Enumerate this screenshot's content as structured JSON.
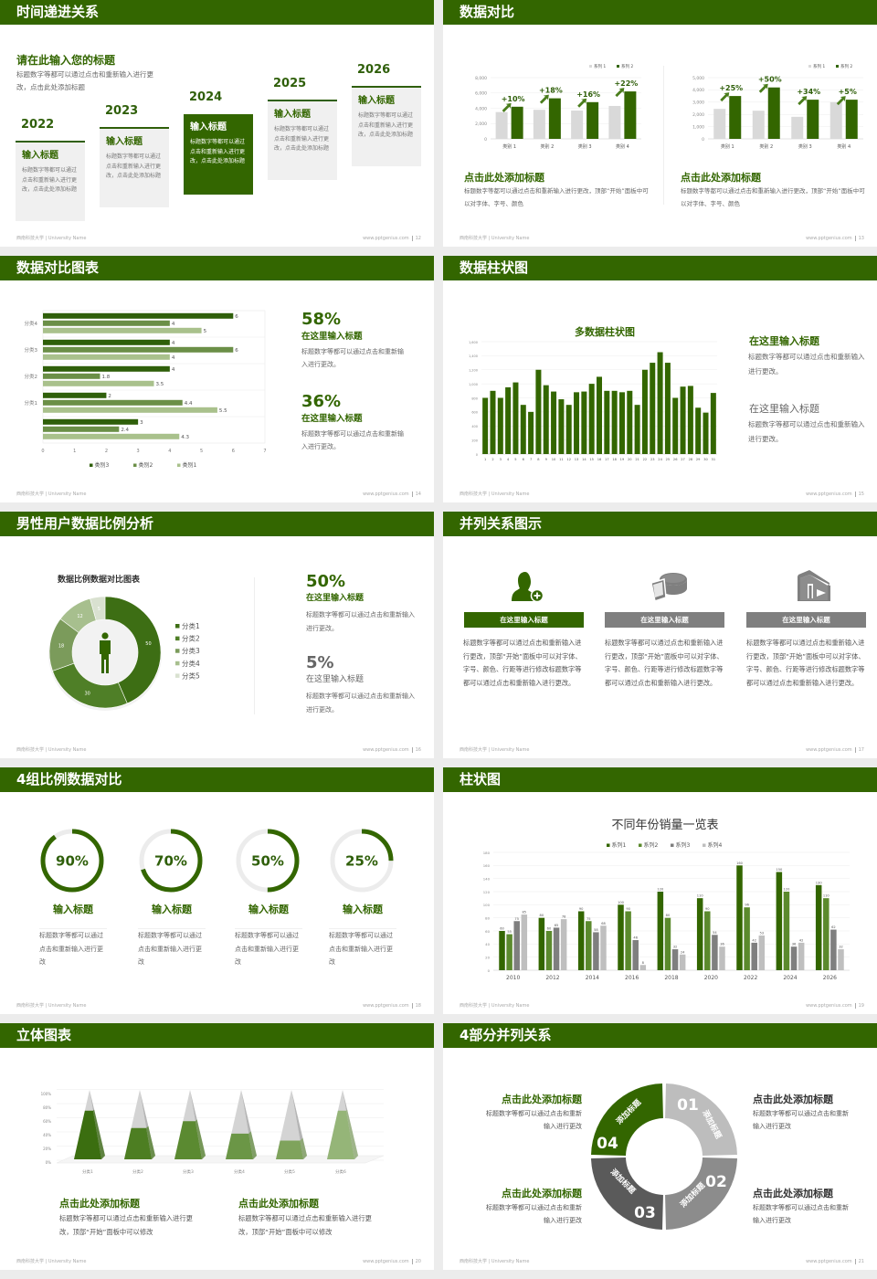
{
  "footer": {
    "org": "西南科技大学 | University Name",
    "site": "www.pptgenius.com"
  },
  "colors": {
    "brand_green": "#336600",
    "light_gray": "#d9d9d9",
    "mid_gray": "#8c8c8c",
    "dark_gray": "#5a5a5a"
  },
  "timeline": {
    "title": "时间递进关系",
    "page": "12",
    "heading": "请在此输入您的标题",
    "desc": "标题数字等都可以通过点击和重新输入进行更改，点击此处添加标题",
    "cards": [
      {
        "year": "2022",
        "title": "输入标题",
        "text": "标题数字等都可以通过点击和重新输入进行更改，点击此处添加标题"
      },
      {
        "year": "2023",
        "title": "输入标题",
        "text": "标题数字等都可以通过点击和重新输入进行更改，点击此处添加标题"
      },
      {
        "year": "2024",
        "title": "输入标题",
        "text": "标题数字等都可以通过点击和重新输入进行更改，点击此处添加标题"
      },
      {
        "year": "2025",
        "title": "输入标题",
        "text": "标题数字等都可以通过点击和重新输入进行更改，点击此处添加标题"
      },
      {
        "year": "2026",
        "title": "输入标题",
        "text": "标题数字等都可以通过点击和重新输入进行更改，点击此处添加标题"
      }
    ]
  },
  "compare": {
    "title": "数据对比",
    "page": "13",
    "blocks": [
      {
        "heading": "点击此处添加标题",
        "text": "标题数字等都可以通过点击和重新输入进行更改，顶部“开始”面板中可以对字体、字号、颜色"
      },
      {
        "heading": "点击此处添加标题",
        "text": "标题数字等都可以通过点击和重新输入进行更改，顶部“开始”面板中可以对字体、字号、颜色"
      }
    ]
  },
  "hbar": {
    "title": "数据对比图表",
    "page": "14",
    "stats": [
      {
        "value": "58%",
        "heading": "在这里输入标题",
        "text": "标题数字等都可以通过点击和重新输入进行更改。"
      },
      {
        "value": "36%",
        "heading": "在这里输入标题",
        "text": "标题数字等都可以通过点击和重新输入进行更改。"
      }
    ]
  },
  "bar31": {
    "title": "数据柱状图",
    "page": "15",
    "items": [
      {
        "heading": "在这里输入标题",
        "text": "标题数字等都可以通过点击和重新输入进行更改。"
      },
      {
        "heading": "在这里输入标题",
        "text": "标题数字等都可以通过点击和重新输入进行更改。"
      }
    ]
  },
  "donut": {
    "title": "男性用户数据比例分析",
    "page": "16",
    "stats": [
      {
        "value": "50%",
        "heading": "在这里输入标题",
        "text": "标题数字等都可以通过点击和重新输入进行更改。"
      },
      {
        "value": "5%",
        "heading": "在这里输入标题",
        "text": "标题数字等都可以通过点击和重新输入进行更改。"
      }
    ]
  },
  "parallel": {
    "title": "并列关系图示",
    "page": "17",
    "items": [
      {
        "icon": "user-add-icon",
        "label": "在这里输入标题",
        "text": "标题数字等都可以通过点击和重新输入进行更改，顶部“开始”面板中可以对字体、字号、颜色、行距等进行修改标题数字等都可以通过点击和重新输入进行更改。"
      },
      {
        "icon": "pie-chart-3d-icon",
        "label": "在这里输入标题",
        "text": "标题数字等都可以通过点击和重新输入进行更改，顶部“开始”面板中可以对字体、字号、颜色、行距等进行修改标题数字等都可以通过点击和重新输入进行更改。"
      },
      {
        "icon": "building-icon",
        "label": "在这里输入标题",
        "text": "标题数字等都可以通过点击和重新输入进行更改，顶部“开始”面板中可以对字体、字号、颜色、行距等进行修改标题数字等都可以通过点击和重新输入进行更改。"
      }
    ]
  },
  "rings": {
    "title": "4组比例数据对比",
    "page": "18",
    "items": [
      {
        "percent": 90,
        "label": "90%",
        "heading": "输入标题",
        "text": "标题数字等都可以通过点击和重新输入进行更改"
      },
      {
        "percent": 70,
        "label": "70%",
        "heading": "输入标题",
        "text": "标题数字等都可以通过点击和重新输入进行更改"
      },
      {
        "percent": 50,
        "label": "50%",
        "heading": "输入标题",
        "text": "标题数字等都可以通过点击和重新输入进行更改"
      },
      {
        "percent": 25,
        "label": "25%",
        "heading": "输入标题",
        "text": "标题数字等都可以通过点击和重新输入进行更改"
      }
    ]
  },
  "sales": {
    "title": "柱状图",
    "page": "19"
  },
  "pyramid": {
    "title": "立体图表",
    "page": "20",
    "blocks": [
      {
        "heading": "点击此处添加标题",
        "text": "标题数字等都可以通过点击和重新输入进行更改，顶部“开始”面板中可以修改"
      },
      {
        "heading": "点击此处添加标题",
        "text": "标题数字等都可以通过点击和重新输入进行更改，顶部“开始”面板中可以修改"
      }
    ]
  },
  "quad": {
    "title": "4部分并列关系",
    "page": "21",
    "segments": [
      {
        "num": "01",
        "label": "添加标题",
        "color": "#bdbdbd"
      },
      {
        "num": "02",
        "label": "添加标题",
        "color": "#8c8c8c"
      },
      {
        "num": "03",
        "label": "添加标题",
        "color": "#5a5a5a"
      },
      {
        "num": "04",
        "label": "添加标题",
        "color": "#336600"
      }
    ],
    "blocks": [
      {
        "heading": "点击此处添加标题",
        "text": "标题数字等都可以通过点击和重新输入进行更改"
      },
      {
        "heading": "点击此处添加标题",
        "text": "标题数字等都可以通过点击和重新输入进行更改"
      },
      {
        "heading": "点击此处添加标题",
        "text": "标题数字等都可以通过点击和重新输入进行更改"
      },
      {
        "heading": "点击此处添加标题",
        "text": "标题数字等都可以通过点击和重新输入进行更改"
      }
    ]
  },
  "chart_data": [
    {
      "type": "bar",
      "categories": [
        "类别 1",
        "类别 2",
        "类别 3",
        "类别 4"
      ],
      "series": [
        {
          "name": "系列 1",
          "values": [
            3500,
            3800,
            3700,
            4300
          ]
        },
        {
          "name": "系列 2",
          "values": [
            4200,
            5300,
            4800,
            6200
          ]
        }
      ],
      "annotations": [
        "+10%",
        "+18%",
        "+16%",
        "+22%"
      ],
      "ylim": [
        0,
        8000
      ],
      "yticks": [
        0,
        2000,
        4000,
        6000,
        8000
      ],
      "colors": [
        "#d9d9d9",
        "#336600"
      ],
      "legend": "top-right",
      "grid": true
    },
    {
      "type": "bar",
      "categories": [
        "类别 1",
        "类别 2",
        "类别 3",
        "类别 4"
      ],
      "series": [
        {
          "name": "系列 1",
          "values": [
            2450,
            2300,
            1800,
            3000
          ]
        },
        {
          "name": "系列 2",
          "values": [
            3500,
            4200,
            3200,
            3200
          ]
        }
      ],
      "annotations": [
        "+25%",
        "+50%",
        "+34%",
        "+5%"
      ],
      "ylim": [
        0,
        5000
      ],
      "yticks": [
        0,
        1000,
        2000,
        3000,
        4000,
        5000
      ],
      "colors": [
        "#d9d9d9",
        "#336600"
      ],
      "legend": "top-right",
      "grid": true
    },
    {
      "type": "bar",
      "orientation": "horizontal",
      "categories": [
        "分类4",
        "分类3",
        "分类2",
        "分类1",
        ""
      ],
      "series": [
        {
          "name": "类别3",
          "values": [
            6,
            4,
            4,
            2,
            3
          ]
        },
        {
          "name": "类别2",
          "values": [
            4,
            6,
            1.8,
            4.4,
            2.4
          ]
        },
        {
          "name": "类别1",
          "values": [
            5,
            4,
            3.5,
            5.5,
            4.3
          ]
        }
      ],
      "xlim": [
        0,
        7
      ],
      "xticks": [
        0,
        1,
        2,
        3,
        4,
        5,
        6,
        7
      ],
      "colors": [
        "#2f5f0a",
        "#6b8f47",
        "#a9c18c"
      ],
      "legend": "bottom",
      "grid": true
    },
    {
      "type": "bar",
      "title": "多数据柱状图",
      "categories": [
        "1",
        "2",
        "3",
        "4",
        "5",
        "6",
        "7",
        "8",
        "9",
        "10",
        "11",
        "12",
        "13",
        "14",
        "15",
        "16",
        "17",
        "18",
        "19",
        "20",
        "21",
        "22",
        "23",
        "24",
        "25",
        "26",
        "27",
        "28",
        "29",
        "30",
        "31"
      ],
      "values": [
        800,
        900,
        800,
        950,
        1020,
        700,
        600,
        1200,
        980,
        890,
        780,
        700,
        880,
        890,
        1000,
        1100,
        900,
        900,
        880,
        900,
        700,
        1200,
        1300,
        1450,
        1300,
        800,
        960,
        970,
        660,
        590,
        870
      ],
      "ylim": [
        0,
        1600
      ],
      "yticks": [
        0,
        200,
        400,
        600,
        800,
        1000,
        1200,
        1400,
        1600
      ],
      "colors": [
        "#336600"
      ],
      "grid": true
    },
    {
      "type": "pie",
      "variant": "donut",
      "title": "数据比例数据对比图表",
      "categories": [
        "分类1",
        "分类2",
        "分类3",
        "分类4",
        "分类5"
      ],
      "values": [
        50,
        30,
        18,
        12,
        5
      ],
      "colors": [
        "#3d6e14",
        "#4f7f27",
        "#7b9b5b",
        "#a7bf8e",
        "#d9e1d0"
      ],
      "legend": "right"
    },
    {
      "type": "bar",
      "title": "不同年份销量一览表",
      "categories": [
        "2010",
        "2012",
        "2014",
        "2016",
        "2018",
        "2020",
        "2022",
        "2024",
        "2026"
      ],
      "series": [
        {
          "name": "系列1",
          "values": [
            60,
            80,
            90,
            100,
            120,
            110,
            160,
            150,
            130
          ]
        },
        {
          "name": "系列2",
          "values": [
            55,
            60,
            75,
            90,
            80,
            90,
            96,
            120,
            110
          ]
        },
        {
          "name": "系列3",
          "values": [
            75,
            65,
            58,
            46,
            32,
            54,
            42,
            36,
            62
          ]
        },
        {
          "name": "系列4",
          "values": [
            85,
            78,
            68,
            8,
            24,
            36,
            53,
            42,
            32
          ]
        }
      ],
      "ylim": [
        0,
        180
      ],
      "yticks": [
        0,
        20,
        40,
        60,
        80,
        100,
        120,
        140,
        160,
        180
      ],
      "colors": [
        "#336600",
        "#5b8a2d",
        "#7f7f7f",
        "#bfbfbf"
      ],
      "legend": "top",
      "grid": true
    },
    {
      "type": "bar",
      "variant": "3d-pyramid",
      "categories": [
        "分类1",
        "分类2",
        "分类3",
        "分类4",
        "分类5",
        "分类6"
      ],
      "values": [
        70,
        45,
        55,
        37,
        27,
        70
      ],
      "ylim": [
        0,
        100
      ],
      "yticks": [
        "0%",
        "20%",
        "40%",
        "60%",
        "80%",
        "100%"
      ],
      "colors": [
        "#3b6e10",
        "#4d7e22",
        "#5b8a31",
        "#6b9646",
        "#7fa35c",
        "#95b578"
      ],
      "grid": true
    }
  ]
}
